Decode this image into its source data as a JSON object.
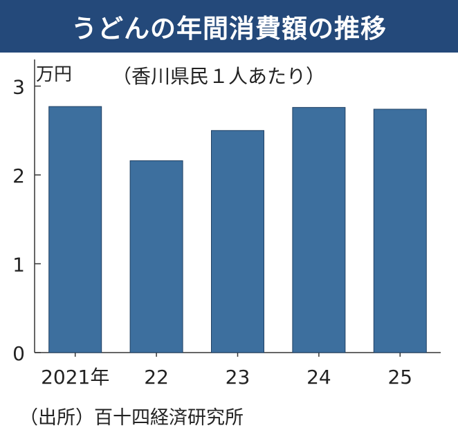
{
  "title": "うどんの年間消費額の推移",
  "source": "（出所）百十四経済研究所",
  "chart_data": {
    "type": "bar",
    "unit_label": "万円",
    "subtitle": "（香川県民１人あたり）",
    "categories": [
      "2021年",
      "22",
      "23",
      "24",
      "25"
    ],
    "values": [
      2.77,
      2.16,
      2.5,
      2.76,
      2.74
    ],
    "ylim": [
      0,
      3.3
    ],
    "yticks": [
      0,
      1,
      2,
      3
    ],
    "bar_color": "#3d6f9e",
    "grid": false
  }
}
